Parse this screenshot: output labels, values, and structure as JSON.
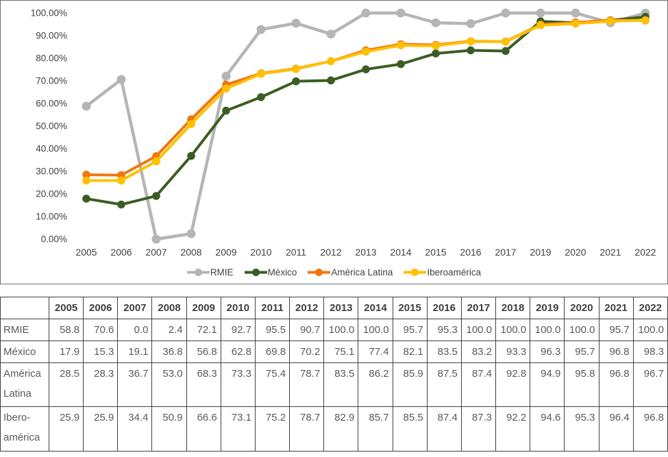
{
  "chart_data": {
    "type": "line",
    "title": "",
    "xlabel": "",
    "ylabel": "",
    "ylim": [
      0,
      100
    ],
    "grid": false,
    "legend_position": "bottom",
    "yticks": [
      "100.00%",
      "90.00%",
      "80.00%",
      "70.00%",
      "60.00%",
      "50.00%",
      "40.00%",
      "30.00%",
      "20.00%",
      "10.00%",
      "0.00%"
    ],
    "ytick_values": [
      100,
      90,
      80,
      70,
      60,
      50,
      40,
      30,
      20,
      10,
      0
    ],
    "categories": [
      "2005",
      "2006",
      "2007",
      "2008",
      "2009",
      "2010",
      "2011",
      "2012",
      "2013",
      "2014",
      "2015",
      "2016",
      "2017",
      "2019",
      "2020",
      "2021",
      "2022"
    ],
    "series": [
      {
        "name": "RMIE",
        "slug": "rmie",
        "color": "#b5b5b5",
        "marker_radius": 6.5,
        "line_width": 4.5,
        "values": [
          58.8,
          70.6,
          0.0,
          2.4,
          72.1,
          92.7,
          95.5,
          90.7,
          100.0,
          100.0,
          95.7,
          95.3,
          100.0,
          100.0,
          100.0,
          95.7,
          100.0
        ]
      },
      {
        "name": "México",
        "slug": "mexico",
        "color": "#3b5d23",
        "marker_radius": 5.8,
        "line_width": 4,
        "values": [
          17.9,
          15.3,
          19.1,
          36.8,
          56.8,
          62.8,
          69.8,
          70.2,
          75.1,
          77.4,
          82.1,
          83.5,
          83.2,
          96.3,
          95.7,
          96.8,
          98.3
        ]
      },
      {
        "name": "América Latina",
        "slug": "america-latina",
        "color": "#f0770f",
        "marker_radius": 5.8,
        "line_width": 4,
        "values": [
          28.5,
          28.3,
          36.7,
          53.0,
          68.3,
          73.3,
          75.4,
          78.7,
          83.5,
          86.2,
          85.9,
          87.5,
          87.4,
          94.9,
          95.8,
          96.8,
          96.7
        ]
      },
      {
        "name": "Iberoamérica",
        "slug": "iberoamerica",
        "color": "#ffc000",
        "marker_radius": 5.8,
        "line_width": 4,
        "values": [
          25.9,
          25.9,
          34.4,
          50.9,
          66.6,
          73.1,
          75.2,
          78.7,
          82.9,
          85.7,
          85.5,
          87.4,
          87.3,
          94.6,
          95.3,
          96.4,
          96.8
        ]
      }
    ]
  },
  "table": {
    "corner_label": "",
    "years": [
      "2005",
      "2006",
      "2007",
      "2008",
      "2009",
      "2010",
      "2011",
      "2012",
      "2013",
      "2014",
      "2015",
      "2016",
      "2017",
      "2018",
      "2019",
      "2020",
      "2021",
      "2022"
    ],
    "rows": [
      {
        "label": "RMIE",
        "slug": "rmie",
        "values": [
          "58.8",
          "70.6",
          "0.0",
          "2.4",
          "72.1",
          "92.7",
          "95.5",
          "90.7",
          "100.0",
          "100.0",
          "95.7",
          "95.3",
          "100.0",
          "100.0",
          "100.0",
          "100.0",
          "95.7",
          "100.0"
        ]
      },
      {
        "label": "México",
        "slug": "mexico",
        "values": [
          "17.9",
          "15.3",
          "19.1",
          "36.8",
          "56.8",
          "62.8",
          "69.8",
          "70.2",
          "75.1",
          "77.4",
          "82.1",
          "83.5",
          "83.2",
          "93.3",
          "96.3",
          "95.7",
          "96.8",
          "98.3"
        ]
      },
      {
        "label": "América Latina",
        "slug": "america-latina",
        "values": [
          "28.5",
          "28.3",
          "36.7",
          "53.0",
          "68.3",
          "73.3",
          "75.4",
          "78.7",
          "83.5",
          "86.2",
          "85.9",
          "87.5",
          "87.4",
          "92.8",
          "94.9",
          "95.8",
          "96.8",
          "96.7"
        ]
      },
      {
        "label": "Ibero-américa",
        "slug": "iberoamerica",
        "values": [
          "25.9",
          "25.9",
          "34.4",
          "50.9",
          "66.6",
          "73.1",
          "75.2",
          "78.7",
          "82.9",
          "85.7",
          "85.5",
          "87.4",
          "87.3",
          "92.2",
          "94.6",
          "95.3",
          "96.4",
          "96.8"
        ]
      }
    ]
  }
}
